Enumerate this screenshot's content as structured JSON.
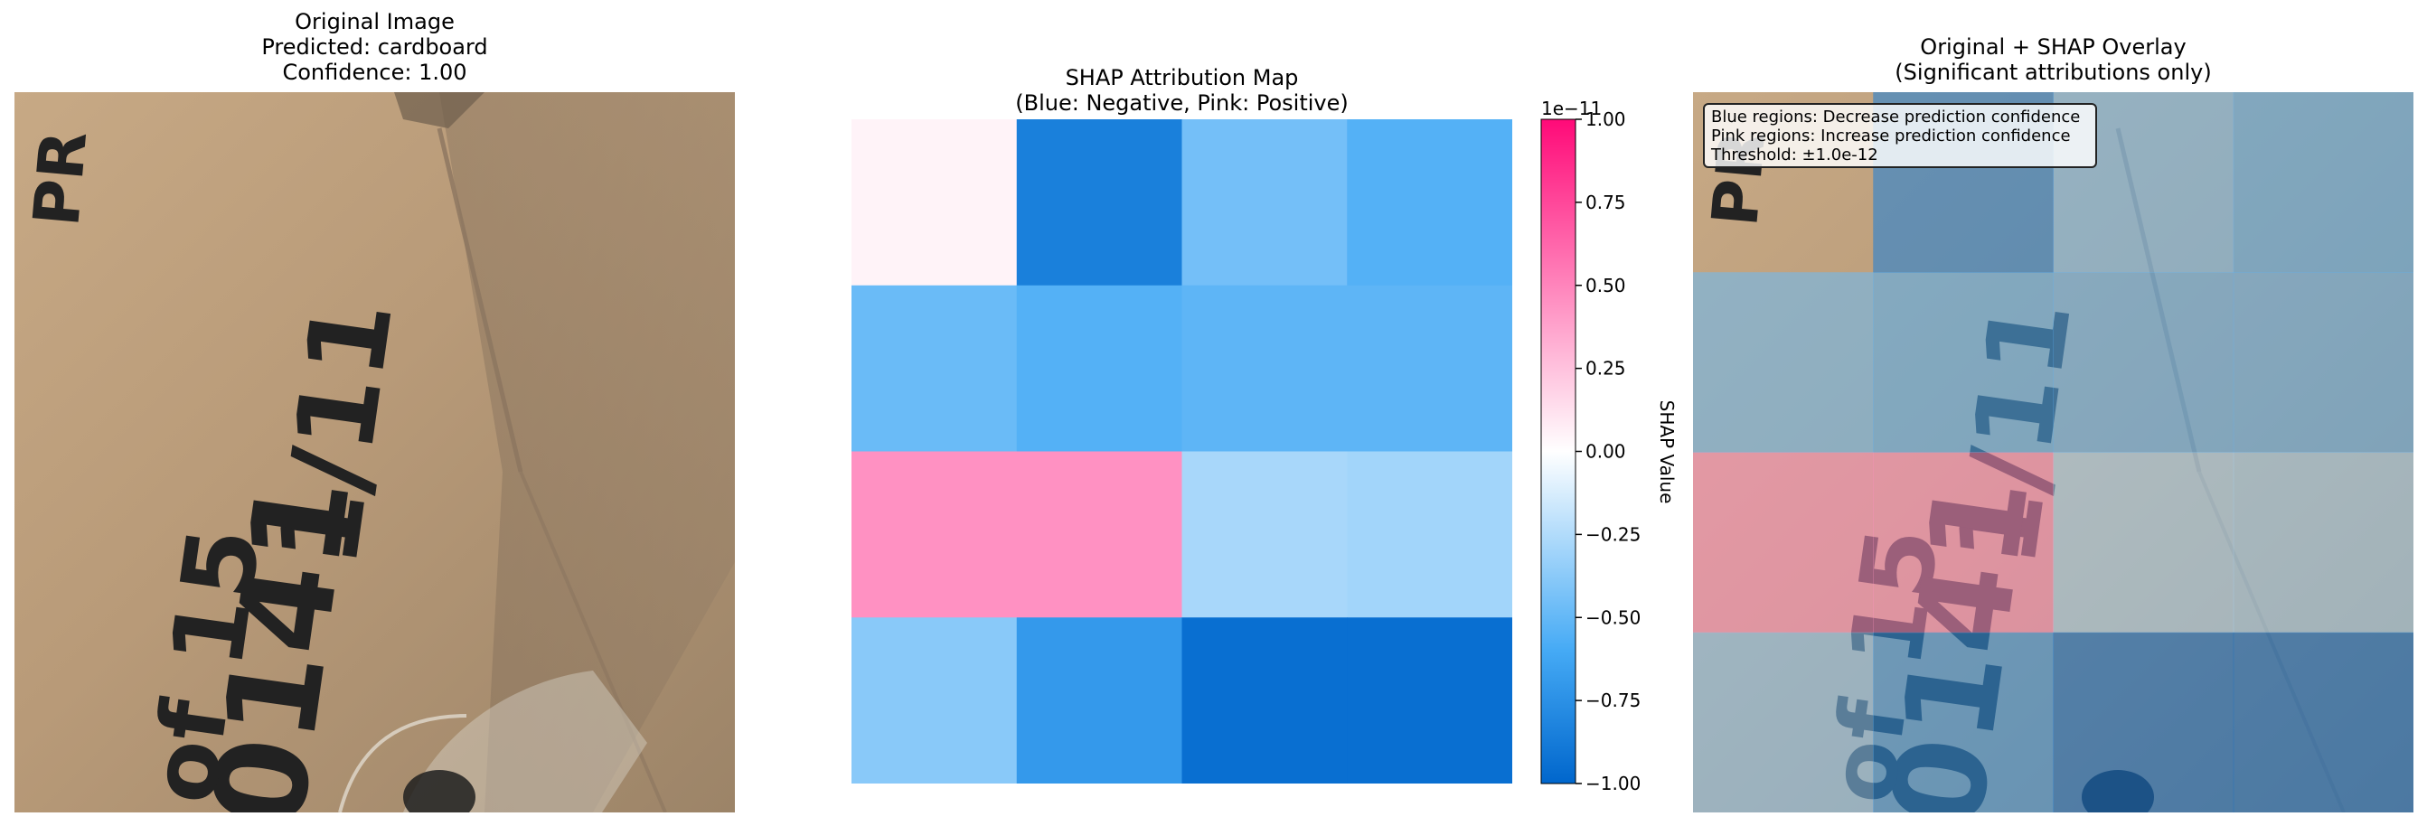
{
  "panels": {
    "original": {
      "title_lines": [
        "Original Image",
        "Predicted: cardboard",
        "Confidence: 1.00"
      ]
    },
    "shap_map": {
      "title_lines": [
        "SHAP Attribution Map",
        "(Blue: Negative, Pink: Positive)"
      ]
    },
    "overlay": {
      "title_lines": [
        "Original + SHAP Overlay",
        "(Significant attributions only)"
      ],
      "legend_lines": [
        "Blue regions: Decrease prediction confidence",
        "Pink regions: Increase prediction confidence",
        "Threshold: ±1.0e-12"
      ]
    }
  },
  "colors": {
    "negative": "#0066cc",
    "neutral": "#ffffff",
    "positive": "#ff0a78",
    "cardboard": "#b89a78"
  },
  "chart_data": {
    "type": "heatmap",
    "rows": 4,
    "cols": 4,
    "values": [
      [
        0.05,
        -0.85,
        -0.45,
        -0.55
      ],
      [
        -0.48,
        -0.55,
        -0.52,
        -0.52
      ],
      [
        0.45,
        0.45,
        -0.28,
        -0.3
      ],
      [
        -0.38,
        -0.7,
        -0.95,
        -0.95
      ]
    ],
    "colorbar": {
      "label": "SHAP Value",
      "exponent_label": "1e−11",
      "ticks": [
        1.0,
        0.75,
        0.5,
        0.25,
        0.0,
        -0.25,
        -0.5,
        -0.75,
        -1.0
      ],
      "tick_labels": [
        "1.00",
        "0.75",
        "0.50",
        "0.25",
        "0.00",
        "−0.25",
        "−0.50",
        "−0.75",
        "−1.00"
      ],
      "vmin": -1.0,
      "vmax": 1.0
    }
  }
}
